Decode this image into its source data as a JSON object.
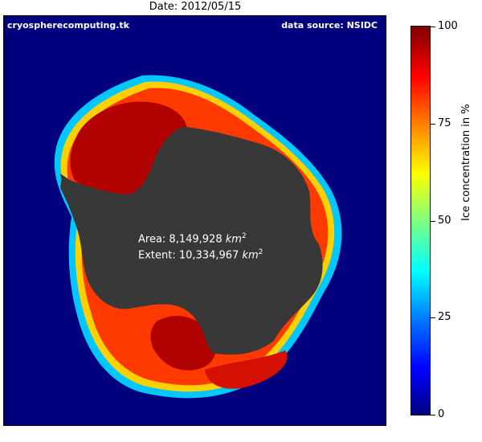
{
  "header": {
    "title": "Date: 2012/05/15"
  },
  "map": {
    "credit_left": "cryospherecomputing.tk",
    "credit_right": "data source: NSIDC",
    "area_prefix": "Area: 8,149,928 ",
    "extent_prefix": "Extent: 10,334,967 ",
    "unit_base": "km",
    "unit_exp": "2",
    "colors": {
      "ocean": "#00007f",
      "land": "#383838",
      "ice_high": "#b00000",
      "ice_mid": "#ff3a00",
      "ice_edge": "#ffd000",
      "ice_low": "#00c8ff"
    }
  },
  "colorbar": {
    "label": "Ice concentration in %",
    "ticks": [
      {
        "value": 0,
        "label": "0"
      },
      {
        "value": 25,
        "label": "25"
      },
      {
        "value": 50,
        "label": "50"
      },
      {
        "value": 75,
        "label": "75"
      },
      {
        "value": 100,
        "label": "100"
      }
    ],
    "colormap": "jet"
  }
}
